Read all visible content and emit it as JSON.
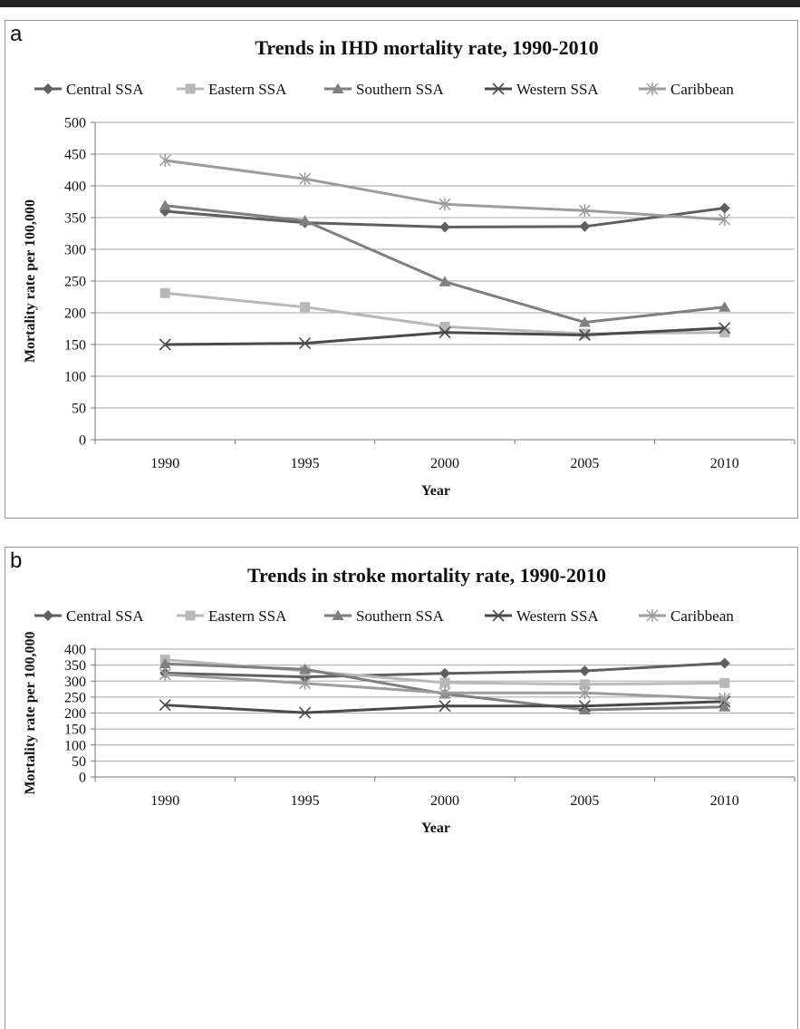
{
  "chart_data": [
    {
      "panel_label": "a",
      "type": "line",
      "title": "Trends in IHD mortality rate, 1990-2010",
      "xlabel": "Year",
      "ylabel": "Mortality rate per 100,000",
      "categories": [
        "1990",
        "1995",
        "2000",
        "2005",
        "2010"
      ],
      "ylim": [
        0,
        500
      ],
      "yticks": [
        0,
        50,
        100,
        150,
        200,
        250,
        300,
        350,
        400,
        450,
        500
      ],
      "grid": true,
      "legend_position": "top",
      "series": [
        {
          "name": "Central SSA",
          "values": [
            360,
            342,
            335,
            336,
            365
          ],
          "color": "#5f5f5f",
          "marker": "diamond"
        },
        {
          "name": "Eastern SSA",
          "values": [
            231,
            209,
            178,
            167,
            169
          ],
          "color": "#b8b8b8",
          "marker": "square"
        },
        {
          "name": "Southern SSA",
          "values": [
            369,
            345,
            249,
            185,
            209
          ],
          "color": "#7f7f7f",
          "marker": "triangle"
        },
        {
          "name": "Western SSA",
          "values": [
            150,
            152,
            169,
            165,
            176
          ],
          "color": "#4a4a4a",
          "marker": "x"
        },
        {
          "name": "Caribbean",
          "values": [
            440,
            411,
            371,
            361,
            347
          ],
          "color": "#9c9c9c",
          "marker": "asterisk"
        }
      ]
    },
    {
      "panel_label": "b",
      "type": "line",
      "title": "Trends in stroke mortality rate, 1990-2010",
      "xlabel": "Year",
      "ylabel": "Mortality rate per 100,000",
      "categories": [
        "1990",
        "1995",
        "2000",
        "2005",
        "2010"
      ],
      "ylim": [
        0,
        400
      ],
      "yticks": [
        0,
        50,
        100,
        150,
        200,
        250,
        300,
        350,
        400
      ],
      "grid": true,
      "legend_position": "top",
      "series": [
        {
          "name": "Central SSA",
          "values": [
            325,
            313,
            324,
            332,
            356
          ],
          "color": "#5f5f5f",
          "marker": "diamond"
        },
        {
          "name": "Eastern SSA",
          "values": [
            367,
            332,
            295,
            290,
            294
          ],
          "color": "#b8b8b8",
          "marker": "square"
        },
        {
          "name": "Southern SSA",
          "values": [
            354,
            337,
            260,
            210,
            219
          ],
          "color": "#7f7f7f",
          "marker": "triangle"
        },
        {
          "name": "Western SSA",
          "values": [
            225,
            201,
            222,
            222,
            236
          ],
          "color": "#4a4a4a",
          "marker": "x"
        },
        {
          "name": "Caribbean",
          "values": [
            321,
            293,
            263,
            263,
            245
          ],
          "color": "#9c9c9c",
          "marker": "asterisk"
        }
      ]
    }
  ]
}
